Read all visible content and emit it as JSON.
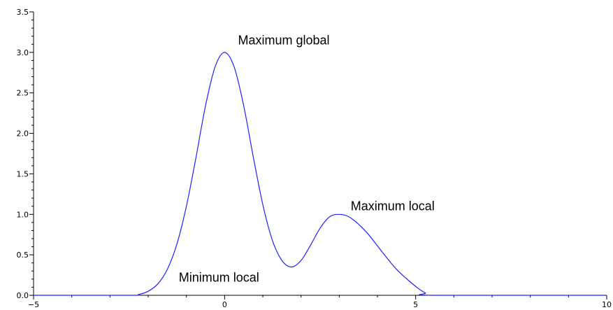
{
  "chart_data": {
    "type": "line",
    "title": "",
    "xlabel": "",
    "ylabel": "",
    "xlim": [
      -5,
      10
    ],
    "ylim": [
      0,
      3.5
    ],
    "grid": false,
    "line_color": "#2020ff",
    "x_ticks": [
      {
        "value": -5,
        "label": "−5"
      },
      {
        "value": 0,
        "label": "0"
      },
      {
        "value": 5,
        "label": "5"
      },
      {
        "value": 10,
        "label": "10"
      }
    ],
    "y_ticks": [
      {
        "value": 0.0,
        "label": "0.0"
      },
      {
        "value": 0.5,
        "label": "0.5"
      },
      {
        "value": 1.0,
        "label": "1.0"
      },
      {
        "value": 1.5,
        "label": "1.5"
      },
      {
        "value": 2.0,
        "label": "2.0"
      },
      {
        "value": 2.5,
        "label": "2.5"
      },
      {
        "value": 3.0,
        "label": "3.0"
      },
      {
        "value": 3.5,
        "label": "3.5"
      }
    ],
    "series": [
      {
        "x": [
          -5.0,
          -2.5,
          -2.25,
          -2.0,
          -1.75,
          -1.5,
          -1.25,
          -1.0,
          -0.75,
          -0.5,
          -0.25,
          0.0,
          0.25,
          0.5,
          0.75,
          1.0,
          1.25,
          1.5,
          1.75,
          2.0,
          2.25,
          2.5,
          2.75,
          3.0,
          3.25,
          3.5,
          3.75,
          4.0,
          4.25,
          4.5,
          4.75,
          5.0,
          5.25,
          5.5,
          10.0
        ],
        "y": [
          0.0,
          0.0,
          0.01,
          0.05,
          0.14,
          0.32,
          0.63,
          1.1,
          1.7,
          2.34,
          2.82,
          3.0,
          2.82,
          2.34,
          1.71,
          1.12,
          0.68,
          0.43,
          0.35,
          0.43,
          0.62,
          0.83,
          0.97,
          1.0,
          0.97,
          0.88,
          0.76,
          0.61,
          0.46,
          0.32,
          0.21,
          0.11,
          0.03,
          0.0,
          0.0
        ]
      }
    ],
    "annotations": [
      {
        "text": "Maximum global",
        "x": 0.35,
        "y": 3.1
      },
      {
        "text": "Maximum local",
        "x": 3.3,
        "y": 1.05
      },
      {
        "text": "Minimum local",
        "x": -1.2,
        "y": 0.17
      }
    ]
  }
}
